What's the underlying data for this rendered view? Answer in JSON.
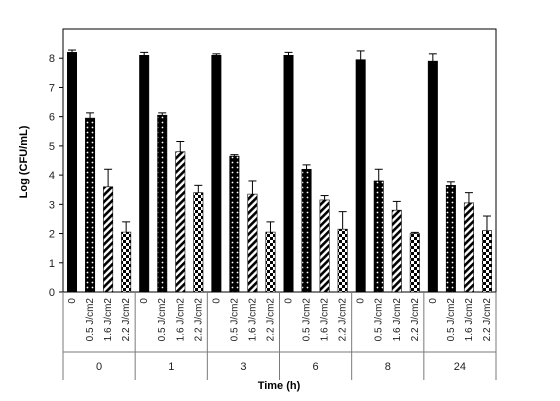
{
  "chart_data": {
    "type": "bar",
    "xlabel": "Time (h)",
    "ylabel": "Log (CFU/mL)",
    "ylim": [
      0,
      9
    ],
    "yticks": [
      0,
      1,
      2,
      3,
      4,
      5,
      6,
      7,
      8
    ],
    "grid": false,
    "groups": [
      "0",
      "1",
      "3",
      "6",
      "8",
      "24"
    ],
    "treatments": [
      "0",
      "0.5 J/cm2",
      "1.6 J/cm2",
      "2.2 J/cm2"
    ],
    "treatment_patterns": [
      "solid-black",
      "white-dots-on-black",
      "diagonal-stripes",
      "checker"
    ],
    "series": [
      {
        "values": [
          8.2,
          8.1,
          8.1,
          8.1,
          7.95,
          7.9
        ],
        "errors": [
          0.08,
          0.1,
          0.05,
          0.1,
          0.3,
          0.25
        ]
      },
      {
        "values": [
          5.95,
          6.05,
          4.65,
          4.2,
          3.8,
          3.65
        ],
        "errors": [
          0.18,
          0.08,
          0.05,
          0.15,
          0.4,
          0.12
        ]
      },
      {
        "values": [
          3.6,
          4.8,
          3.35,
          3.15,
          2.8,
          3.05
        ],
        "errors": [
          0.6,
          0.35,
          0.45,
          0.15,
          0.3,
          0.35
        ]
      },
      {
        "values": [
          2.05,
          3.4,
          2.05,
          2.15,
          2.0,
          2.1
        ],
        "errors": [
          0.35,
          0.25,
          0.35,
          0.6,
          0.04,
          0.5
        ]
      }
    ]
  }
}
